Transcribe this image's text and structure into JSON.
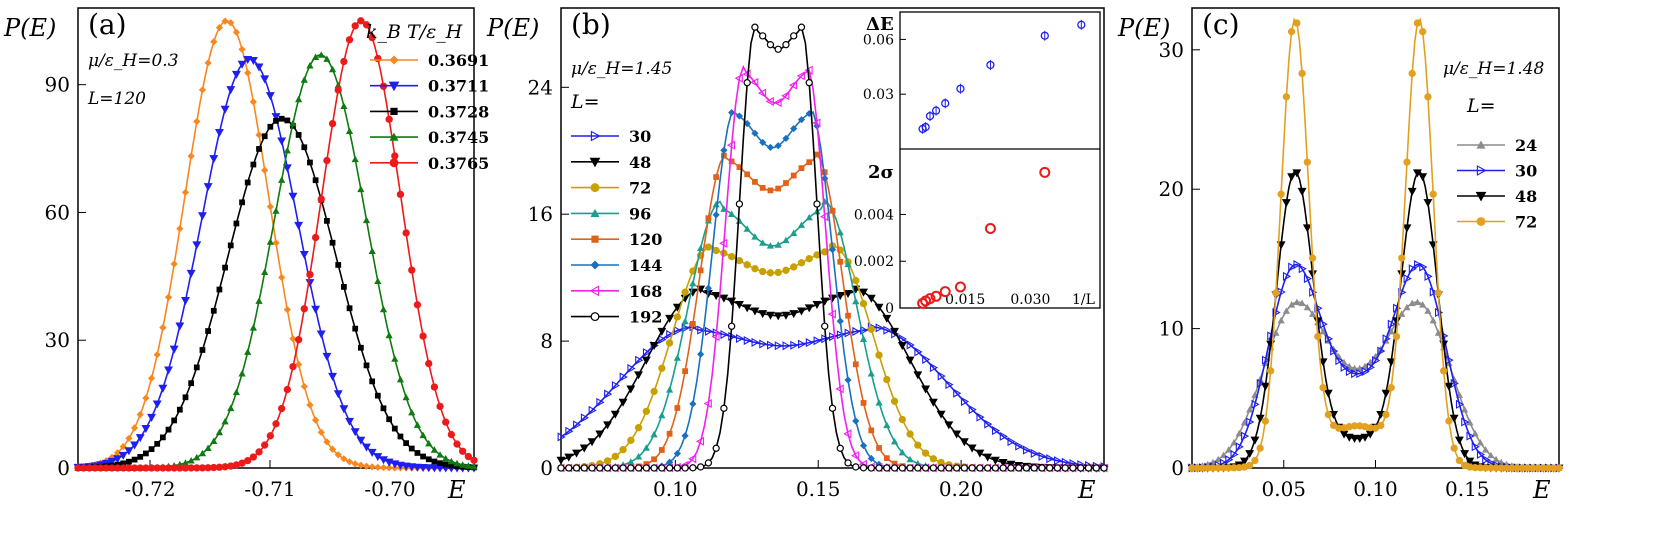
{
  "panels": [
    {
      "id": "a",
      "label": "(a)",
      "ylabel": "P(E)",
      "xlabel": "E",
      "annotations": [
        "μ/ε_H=0.3",
        "L=120"
      ],
      "legend_title": "k_B T/ε_H",
      "xticks": [
        "-0.72",
        "-0.71",
        "-0.70"
      ],
      "yticks": [
        "0",
        "30",
        "60",
        "90"
      ]
    },
    {
      "id": "b",
      "label": "(b)",
      "ylabel": "P(E)",
      "xlabel": "E",
      "annotations": [
        "μ/ε_H=1.45"
      ],
      "legend_title": "L=",
      "xticks": [
        "0.10",
        "0.15",
        "0.20"
      ],
      "yticks": [
        "0",
        "8",
        "16",
        "24"
      ],
      "inset": {
        "top_label": "ΔE",
        "bottom_label": "2σ",
        "xlabel": "1/L",
        "top_yticks": [
          "0.03",
          "0.06"
        ],
        "bottom_yticks": [
          "0",
          "0.002",
          "0.004"
        ],
        "xticks": [
          "0",
          "0.015",
          "0.030"
        ]
      }
    },
    {
      "id": "c",
      "label": "(c)",
      "ylabel": "P(E)",
      "xlabel": "E",
      "annotations": [
        "μ/ε_H=1.48"
      ],
      "legend_title": "L=",
      "xticks": [
        "0.05",
        "0.10",
        "0.15"
      ],
      "yticks": [
        "0",
        "10",
        "20",
        "30"
      ]
    }
  ],
  "chart_data": [
    {
      "type": "line",
      "panel": "a",
      "xlim": [
        -0.726,
        -0.693
      ],
      "ylim": [
        0,
        108
      ],
      "series": [
        {
          "name": "0.3691",
          "color": "#f7871e",
          "marker": "diamond",
          "mu": -0.7136,
          "sigma": 0.0035,
          "peak": 105
        },
        {
          "name": "0.3711",
          "color": "#1f1ff0",
          "marker": "triangle-down",
          "mu": -0.7117,
          "sigma": 0.004,
          "peak": 96
        },
        {
          "name": "0.3728",
          "color": "#000000",
          "marker": "square",
          "mu": -0.709,
          "sigma": 0.0045,
          "peak": 82
        },
        {
          "name": "0.3745",
          "color": "#0f7a0f",
          "marker": "triangle-up",
          "mu": -0.7058,
          "sigma": 0.0038,
          "peak": 97
        },
        {
          "name": "0.3765",
          "color": "#ec1a1a",
          "marker": "circle",
          "mu": -0.7024,
          "sigma": 0.0033,
          "peak": 105
        }
      ]
    },
    {
      "type": "line",
      "panel": "b",
      "xlim": [
        0.06,
        0.25
      ],
      "ylim": [
        0,
        29
      ],
      "series": [
        {
          "name": "30",
          "color": "#1f1ff0",
          "marker": "triangle-right",
          "a": 0.107,
          "b": 0.168,
          "s": 0.027,
          "peak": 8.9,
          "dip": 7.7
        },
        {
          "name": "48",
          "color": "#000000",
          "marker": "triangle-down",
          "a": 0.11,
          "b": 0.162,
          "s": 0.02,
          "peak": 11.3,
          "dip": 9.6
        },
        {
          "name": "72",
          "color": "#c8a000",
          "marker": "circle",
          "a": 0.113,
          "b": 0.155,
          "s": 0.014,
          "peak": 14.0,
          "dip": 12.3
        },
        {
          "name": "96",
          "color": "#1a9e8e",
          "marker": "triangle-up",
          "a": 0.116,
          "b": 0.152,
          "s": 0.0115,
          "peak": 16.8,
          "dip": 14.0
        },
        {
          "name": "120",
          "color": "#e0621a",
          "marker": "square",
          "a": 0.118,
          "b": 0.149,
          "s": 0.0095,
          "peak": 19.8,
          "dip": 17.5
        },
        {
          "name": "144",
          "color": "#1a70c0",
          "marker": "diamond",
          "a": 0.121,
          "b": 0.147,
          "s": 0.008,
          "peak": 22.7,
          "dip": 20.2
        },
        {
          "name": "168",
          "color": "#f020f0",
          "marker": "triangle-left",
          "a": 0.124,
          "b": 0.146,
          "s": 0.0065,
          "peak": 25.3,
          "dip": 23.0
        },
        {
          "name": "192",
          "color": "#000000",
          "marker": "circle",
          "a": 0.128,
          "b": 0.144,
          "s": 0.0055,
          "peak": 27.8,
          "dip": 26.4
        }
      ],
      "inset_data": {
        "x": [
          0.0052,
          0.0069,
          0.0083,
          0.0104,
          0.0139,
          0.0208,
          0.0333,
          0.0417
        ],
        "deltaE": [
          0.011,
          0.012,
          0.018,
          0.021,
          0.025,
          0.033,
          0.046,
          0.062,
          0.068
        ],
        "deltaE_x": [
          0.0052,
          0.0059,
          0.0069,
          0.0083,
          0.0104,
          0.0139,
          0.0208,
          0.0333,
          0.0417
        ],
        "sigma_x": [
          0.0052,
          0.0059,
          0.0069,
          0.0083,
          0.0104,
          0.0139,
          0.0208,
          0.0333
        ],
        "sigma2": [
          0.0002,
          0.0003,
          0.0004,
          0.0005,
          0.0007,
          0.0009,
          0.0034,
          0.0058
        ]
      }
    },
    {
      "type": "line",
      "panel": "c",
      "xlim": [
        0.0,
        0.2
      ],
      "ylim": [
        0,
        33
      ],
      "series": [
        {
          "name": "24",
          "color": "#8c8c8c",
          "marker": "triangle-up",
          "p1": 0.055,
          "p2": 0.125,
          "s": 0.017,
          "peak": 10.8
        },
        {
          "name": "30",
          "color": "#1f1ff0",
          "marker": "triangle-right",
          "p1": 0.055,
          "p2": 0.125,
          "s": 0.014,
          "peak": 13.3
        },
        {
          "name": "48",
          "color": "#000000",
          "marker": "triangle-down",
          "p1": 0.056,
          "p2": 0.124,
          "s": 0.01,
          "peak": 20.8
        },
        {
          "name": "72",
          "color": "#e2a020",
          "marker": "circle",
          "p1": 0.056,
          "p2": 0.124,
          "s": 0.0075,
          "peak": 31.5
        }
      ]
    }
  ]
}
